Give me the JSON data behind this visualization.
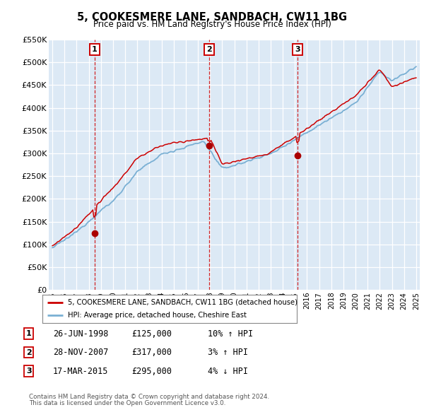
{
  "title": "5, COOKESMERE LANE, SANDBACH, CW11 1BG",
  "subtitle": "Price paid vs. HM Land Registry's House Price Index (HPI)",
  "legend_line1": "5, COOKESMERE LANE, SANDBACH, CW11 1BG (detached house)",
  "legend_line2": "HPI: Average price, detached house, Cheshire East",
  "footer1": "Contains HM Land Registry data © Crown copyright and database right 2024.",
  "footer2": "This data is licensed under the Open Government Licence v3.0.",
  "sales": [
    {
      "num": 1,
      "date": "26-JUN-1998",
      "price": 125000,
      "hpi_pct": "10%",
      "hpi_dir": "↑"
    },
    {
      "num": 2,
      "date": "28-NOV-2007",
      "price": 317000,
      "hpi_pct": "3%",
      "hpi_dir": "↑"
    },
    {
      "num": 3,
      "date": "17-MAR-2015",
      "price": 295000,
      "hpi_pct": "4%",
      "hpi_dir": "↓"
    }
  ],
  "sale_years": [
    1998.49,
    2007.91,
    2015.21
  ],
  "sale_prices": [
    125000,
    317000,
    295000
  ],
  "hpi_color": "#7ab0d4",
  "price_color": "#cc0000",
  "marker_color": "#aa0000",
  "dashed_color": "#cc0000",
  "ylim": [
    0,
    550000
  ],
  "yticks": [
    0,
    50000,
    100000,
    150000,
    200000,
    250000,
    300000,
    350000,
    400000,
    450000,
    500000,
    550000
  ],
  "xlim": [
    1994.7,
    2025.3
  ],
  "background_color": "#ffffff",
  "plot_bg": "#dce9f5"
}
